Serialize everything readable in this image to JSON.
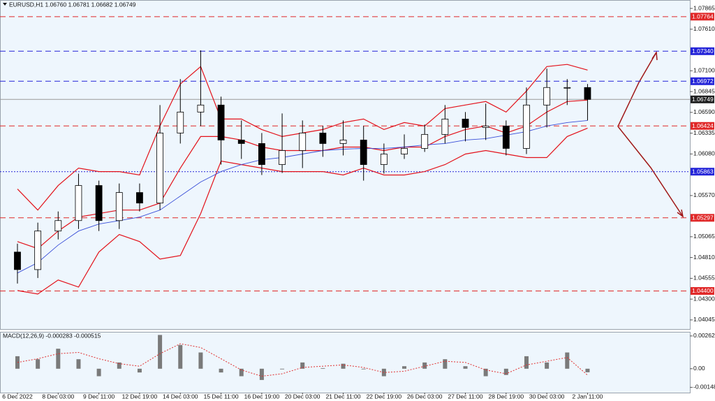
{
  "chart_data": [
    {
      "type": "candlestick",
      "title": "EURUSD,H1  1.06760 1.06781 1.06682 1.06749",
      "categories": [
        "6 Dec 2022",
        null,
        "8 Dec 03:00",
        null,
        "9 Dec 11:00",
        null,
        "12 Dec 19:00",
        null,
        "14 Dec 03:00",
        null,
        "15 Dec 11:00",
        null,
        "16 Dec 19:00",
        null,
        "20 Dec 03:00",
        null,
        "21 Dec 11:00",
        null,
        "22 Dec 19:00",
        null,
        "26 Dec 03:00",
        null,
        "27 Dec 11:00",
        null,
        "28 Dec 19:00",
        null,
        "30 Dec 03:00",
        null,
        "2 Jan 11:00"
      ],
      "open": [
        1.04877,
        1.04662,
        1.05135,
        1.05263,
        1.05693,
        1.05263,
        1.05607,
        1.05478,
        1.06337,
        1.06594,
        1.0668,
        1.06251,
        1.06208,
        1.0595,
        1.06122,
        1.06337,
        1.06208,
        1.06251,
        1.0595,
        1.06079,
        1.06148,
        1.0632,
        1.06508,
        1.06405,
        1.06423,
        1.06148,
        1.0668,
        1.06895,
        1.06895
      ],
      "high": [
        1.0498,
        1.05238,
        1.05375,
        1.05839,
        1.05753,
        1.05718,
        1.05718,
        1.0668,
        1.06998,
        1.0735,
        1.06783,
        1.06491,
        1.06337,
        1.06577,
        1.06491,
        1.06423,
        1.06491,
        1.06423,
        1.06208,
        1.0632,
        1.0644,
        1.0668,
        1.06594,
        1.06697,
        1.06491,
        1.06895,
        1.07127,
        1.06998,
        1.06938
      ],
      "low": [
        1.04491,
        1.04559,
        1.05032,
        1.0516,
        1.05135,
        1.0516,
        1.05375,
        1.05392,
        1.06208,
        1.06423,
        1.0595,
        1.06019,
        1.05822,
        1.05847,
        1.05907,
        1.06045,
        1.06062,
        1.05753,
        1.05839,
        1.06019,
        1.06105,
        1.06208,
        1.06234,
        1.06251,
        1.06062,
        1.06079,
        1.06405,
        1.0668,
        1.06491
      ],
      "close": [
        1.04662,
        1.05135,
        1.05263,
        1.05693,
        1.05263,
        1.05607,
        1.05478,
        1.06337,
        1.06594,
        1.0668,
        1.06251,
        1.06208,
        1.0595,
        1.06122,
        1.06337,
        1.06208,
        1.06251,
        1.0595,
        1.06079,
        1.06148,
        1.0632,
        1.06508,
        1.06405,
        1.06423,
        1.06148,
        1.0668,
        1.06895,
        1.06895,
        1.06749
      ],
      "upper_band": [
        1.0565,
        1.05392,
        1.05693,
        1.05907,
        1.05864,
        1.05864,
        1.05822,
        1.06423,
        1.06938,
        1.07152,
        1.06508,
        1.06508,
        1.0638,
        1.06294,
        1.06337,
        1.0638,
        1.06465,
        1.06508,
        1.0638,
        1.06465,
        1.06423,
        1.06637,
        1.0668,
        1.06723,
        1.06594,
        1.06852,
        1.07152,
        1.07178,
        1.07109
      ],
      "middle_band": [
        1.05006,
        1.0492,
        1.05135,
        1.05306,
        1.05349,
        1.05392,
        1.05392,
        1.05478,
        1.05907,
        1.06294,
        1.06294,
        1.06251,
        1.06165,
        1.06122,
        1.06122,
        1.06122,
        1.06165,
        1.06165,
        1.06122,
        1.06165,
        1.06165,
        1.06294,
        1.0638,
        1.06423,
        1.06337,
        1.06423,
        1.06594,
        1.06723,
        1.0674
      ],
      "lower_band": [
        1.04405,
        1.04362,
        1.04534,
        1.04448,
        1.04877,
        1.05092,
        1.05006,
        1.04791,
        1.04834,
        1.05349,
        1.05993,
        1.0595,
        1.05907,
        1.05864,
        1.05864,
        1.05864,
        1.05822,
        1.05907,
        1.05822,
        1.05822,
        1.05864,
        1.0595,
        1.06079,
        1.06122,
        1.06079,
        1.06036,
        1.06036,
        1.06294,
        1.06397
      ],
      "moving_average": [
        1.0462,
        1.04748,
        1.04963,
        1.05135,
        1.05221,
        1.05263,
        1.05306,
        1.05392,
        1.05564,
        1.05736,
        1.05864,
        1.0595,
        1.0601,
        1.06036,
        1.06079,
        1.06122,
        1.06139,
        1.06148,
        1.06148,
        1.06165,
        1.06191,
        1.06208,
        1.06251,
        1.06268,
        1.06311,
        1.06354,
        1.06423,
        1.06465,
        1.06491
      ],
      "up_color": "#ffffff",
      "down_color": "#000000",
      "band_color": "#e3121b",
      "ma_color": "#3a4fd8",
      "ylim": [
        1.03933,
        1.07968
      ],
      "yticks": [
        1.04045,
        {
          "value": 1.043,
          "label": "1.04300"
        },
        1.04555,
        {
          "value": 1.0481,
          "label": "1.04810"
        },
        1.05065,
        {
          "value": 1.0557,
          "label": "1.05570"
        },
        {
          "value": 1.0608,
          "label": "1.06080"
        },
        1.06335,
        {
          "value": 1.0659,
          "label": "1.06590"
        },
        1.06845,
        {
          "value": 1.071,
          "label": "1.07100"
        },
        {
          "value": 1.0761,
          "label": "1.07610"
        },
        1.07865
      ],
      "grid": false,
      "levels": [
        {
          "value": 1.07764,
          "label": "1.07764",
          "color": "#e02828",
          "style": "dashed"
        },
        {
          "value": 1.0734,
          "label": "1.07340",
          "color": "#2323d8",
          "style": "dashed"
        },
        {
          "value": 1.06972,
          "label": "1.06972",
          "color": "#2323d8",
          "style": "dashed"
        },
        {
          "value": 1.06749,
          "label": "1.06749",
          "color": "#202020",
          "style": "solid"
        },
        {
          "value": 1.06424,
          "label": "1.06424",
          "color": "#e02828",
          "style": "dashed"
        },
        {
          "value": 1.05863,
          "label": "1.05863",
          "color": "#2323d8",
          "style": "dotted"
        },
        {
          "value": 1.05297,
          "label": "1.05297",
          "color": "#e02828",
          "style": "dashed"
        },
        {
          "value": 1.044,
          "label": "1.04400",
          "color": "#e02828",
          "style": "dashed"
        }
      ]
    },
    {
      "type": "macd",
      "title": "MACD(12,26,9) -0.000283 -0.000515",
      "values": [
        0.001,
        0.00076,
        0.0016,
        0.00076,
        -0.0006,
        0.0005,
        -0.0003,
        0.0027,
        0.0019,
        0.0013,
        -0.0003,
        -0.0006,
        -0.0009,
        -5e-05,
        0.0005,
        5e-05,
        0.0004,
        -5e-05,
        -0.0006,
        0.0002,
        0.0005,
        0.00076,
        0.0002,
        -0.0006,
        -0.0005,
        0.001,
        0.0005,
        0.0013,
        -0.000283
      ],
      "signal": [
        0.0005,
        0.0008,
        0.0012,
        0.0013,
        0.0008,
        0.0004,
        0.0002,
        0.0012,
        0.002,
        0.0017,
        0.0008,
        -0.0001,
        -0.0006,
        -0.0004,
        0.0001,
        0.0002,
        0.0003,
        0.0001,
        -0.0003,
        -0.0002,
        0.0002,
        0.0006,
        0.0005,
        -0.0001,
        -0.0004,
        0.0003,
        0.0006,
        0.0009,
        -0.000515
      ],
      "color": "#7a7a7a",
      "signal_color": "#e03030",
      "ylim": [
        -0.001911,
        0.002894
      ],
      "yticks": [
        -0.001486,
        {
          "value": 0,
          "label": "0.00"
        },
        0.002621
      ]
    }
  ]
}
